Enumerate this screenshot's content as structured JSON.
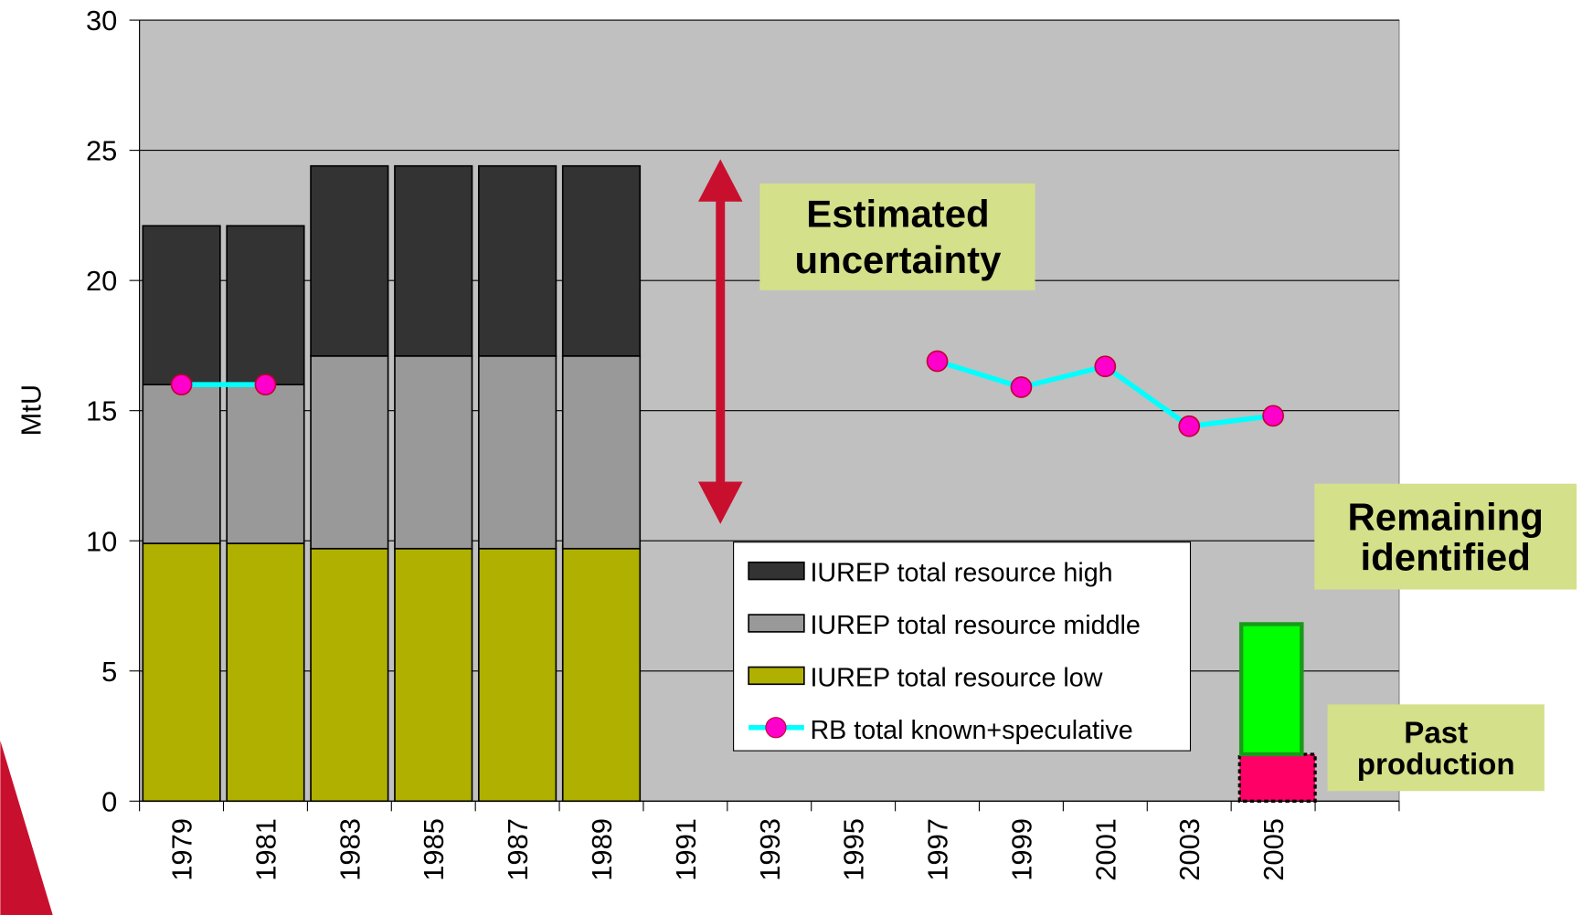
{
  "chart_data": {
    "type": "bar",
    "stacked": true,
    "y_label": "MtU",
    "categories": [
      "1979",
      "1981",
      "1983",
      "1985",
      "1987",
      "1989",
      "1991",
      "1993",
      "1995",
      "1997",
      "1999",
      "2001",
      "2003",
      "2005",
      null
    ],
    "ylim": [
      0,
      30
    ],
    "yticks": [
      0,
      5,
      10,
      15,
      20,
      25,
      30
    ],
    "grid": true,
    "series": [
      {
        "name": "IUREP total resource low",
        "color": "#b0b000",
        "values": [
          9.9,
          9.9,
          9.7,
          9.7,
          9.7,
          9.7,
          null,
          null,
          null,
          null,
          null,
          null,
          null,
          null,
          null
        ]
      },
      {
        "name": "IUREP total resource middle",
        "color": "#999999",
        "values": [
          6.1,
          6.1,
          7.4,
          7.4,
          7.4,
          7.4,
          null,
          null,
          null,
          null,
          null,
          null,
          null,
          null,
          null
        ]
      },
      {
        "name": "IUREP total resource high",
        "color": "#333333",
        "values": [
          6.1,
          6.1,
          7.3,
          7.3,
          7.3,
          7.3,
          null,
          null,
          null,
          null,
          null,
          null,
          null,
          null,
          null
        ]
      },
      {
        "name": "RB total known+speculative",
        "type": "line",
        "color": "#00ffff",
        "marker_color": "#ff00cc",
        "values": [
          16,
          16,
          null,
          null,
          null,
          null,
          null,
          null,
          null,
          16.9,
          15.9,
          16.7,
          14.4,
          14.8,
          null
        ]
      }
    ],
    "extra_bars": {
      "category": "2005",
      "segments": [
        {
          "label": [
            "Past",
            "production"
          ],
          "color": "#ff0066",
          "value": 1.8
        },
        {
          "label": [
            "Remaining",
            "identified"
          ],
          "color": "#00ff00",
          "value": 5.0
        }
      ]
    },
    "annotation": [
      "Estimated",
      "uncertainty"
    ]
  }
}
